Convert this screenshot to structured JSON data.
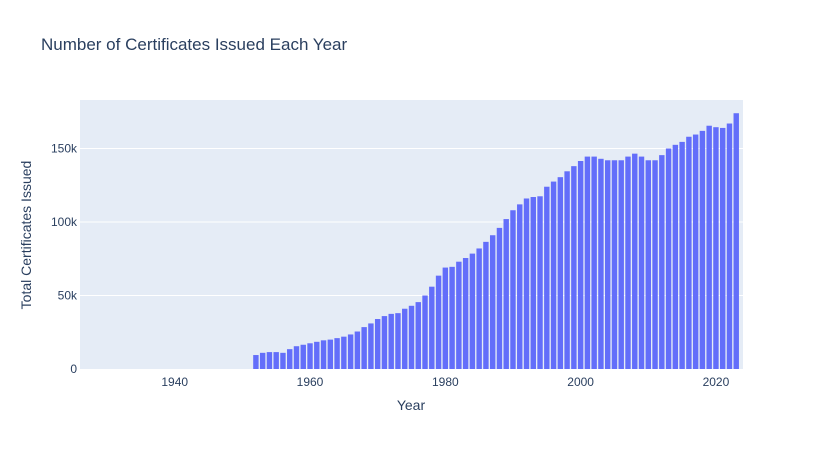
{
  "chart_data": {
    "type": "bar",
    "title": "Number of Certificates Issued Each Year",
    "xlabel": "Year",
    "ylabel": "Total Certificates Issued",
    "xlim": [
      1926,
      2024
    ],
    "ylim": [
      0,
      183000
    ],
    "grid": true,
    "legend": "none",
    "colors": {
      "bar": "#636efa",
      "plot_bg": "#e5ecf6",
      "grid": "#ffffff",
      "text": "#2a3f5f"
    },
    "x_ticks": [
      {
        "value": 1940,
        "label": "1940"
      },
      {
        "value": 1960,
        "label": "1960"
      },
      {
        "value": 1980,
        "label": "1980"
      },
      {
        "value": 2000,
        "label": "2000"
      },
      {
        "value": 2020,
        "label": "2020"
      }
    ],
    "y_ticks": [
      {
        "value": 0,
        "label": "0"
      },
      {
        "value": 50000,
        "label": "50k"
      },
      {
        "value": 100000,
        "label": "100k"
      },
      {
        "value": 150000,
        "label": "150k"
      }
    ],
    "x": [
      1952,
      1953,
      1954,
      1955,
      1956,
      1957,
      1958,
      1959,
      1960,
      1961,
      1962,
      1963,
      1964,
      1965,
      1966,
      1967,
      1968,
      1969,
      1970,
      1971,
      1972,
      1973,
      1974,
      1975,
      1976,
      1977,
      1978,
      1979,
      1980,
      1981,
      1982,
      1983,
      1984,
      1985,
      1986,
      1987,
      1988,
      1989,
      1990,
      1991,
      1992,
      1993,
      1994,
      1995,
      1996,
      1997,
      1998,
      1999,
      2000,
      2001,
      2002,
      2003,
      2004,
      2005,
      2006,
      2007,
      2008,
      2009,
      2010,
      2011,
      2012,
      2013,
      2014,
      2015,
      2016,
      2017,
      2018,
      2019,
      2020,
      2021,
      2022,
      2023
    ],
    "values": [
      9500,
      11000,
      11500,
      11500,
      11000,
      13500,
      15500,
      16500,
      17500,
      18500,
      19500,
      20000,
      21000,
      22000,
      23500,
      25500,
      28500,
      31000,
      34000,
      36000,
      37500,
      38000,
      41000,
      43000,
      45500,
      50000,
      56000,
      63500,
      69000,
      69500,
      73000,
      75500,
      78500,
      82000,
      86500,
      91000,
      96000,
      102000,
      108000,
      112000,
      116000,
      117000,
      117500,
      124000,
      127500,
      130500,
      134500,
      138000,
      141500,
      144500,
      144500,
      143000,
      142000,
      142000,
      142000,
      144500,
      146500,
      144500,
      142000,
      142000,
      145500,
      150000,
      152500,
      154500,
      158000,
      159500,
      162000,
      165500,
      164500,
      164000,
      167000,
      174000
    ]
  }
}
